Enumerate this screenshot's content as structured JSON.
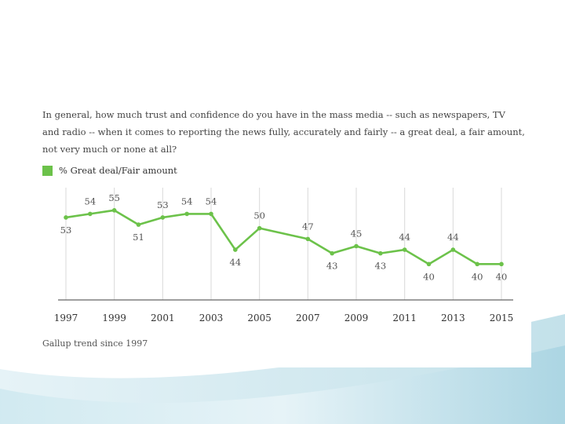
{
  "question": "In general, how much trust and confidence do you have in the mass media -- such as newspapers, TV and radio -- when it comes to reporting the news fully, accurately and fairly -- a great deal, a fair amount, not very much or none at all?",
  "footnote": "Gallup trend since 1997",
  "colors": {
    "series": "#6cc24a",
    "axis": "#666666",
    "gridline": "#d9d9d9",
    "label": "#555555",
    "background_wave_light": "#e3f2f6",
    "background_wave_dark": "#b9dde8"
  },
  "chart_data": {
    "type": "line",
    "title": "",
    "xlabel": "",
    "ylabel": "",
    "legend_position": "top-left",
    "grid": true,
    "categories": [
      "1997",
      "1999",
      "2001",
      "2003",
      "2005",
      "2007",
      "2009",
      "2011",
      "2013",
      "2015"
    ],
    "series": [
      {
        "name": "% Great deal/Fair amount",
        "x": [
          1997,
          1998,
          1999,
          2000,
          2001,
          2002,
          2003,
          2004,
          2005,
          2007,
          2008,
          2009,
          2010,
          2011,
          2012,
          2013,
          2014,
          2015
        ],
        "values": [
          53,
          54,
          55,
          51,
          53,
          54,
          54,
          44,
          50,
          47,
          43,
          45,
          43,
          44,
          40,
          44,
          40,
          40
        ]
      }
    ],
    "xlim": [
      1997,
      2015
    ],
    "ylim": [
      30,
      60
    ]
  }
}
